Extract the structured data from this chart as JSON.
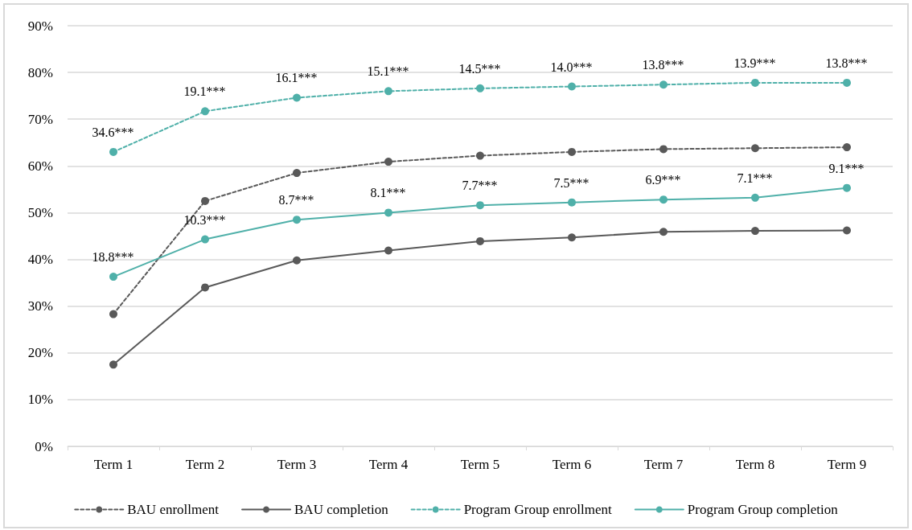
{
  "chart_data": {
    "type": "line",
    "categories": [
      "Term 1",
      "Term 2",
      "Term 3",
      "Term 4",
      "Term 5",
      "Term 6",
      "Term 7",
      "Term 8",
      "Term 9"
    ],
    "series": [
      {
        "name": "BAU enrollment",
        "color": "#595959",
        "line_style": "dashed",
        "values": [
          28.3,
          52.5,
          58.5,
          60.9,
          62.2,
          63.0,
          63.6,
          63.8,
          64.0
        ]
      },
      {
        "name": "BAU completion",
        "color": "#595959",
        "line_style": "solid",
        "values": [
          17.5,
          34.0,
          39.8,
          41.9,
          43.9,
          44.7,
          45.9,
          46.1,
          46.2
        ]
      },
      {
        "name": "Program Group enrollment",
        "color": "#4fb0a9",
        "line_style": "dashed",
        "values": [
          63.0,
          71.7,
          74.6,
          76.0,
          76.6,
          77.0,
          77.4,
          77.8,
          77.8
        ]
      },
      {
        "name": "Program Group completion",
        "color": "#4fb0a9",
        "line_style": "solid",
        "values": [
          36.3,
          44.3,
          48.5,
          50.0,
          51.6,
          52.2,
          52.8,
          53.2,
          55.3
        ]
      }
    ],
    "ylim": [
      0,
      90
    ],
    "yticks": [
      {
        "value": 0,
        "label": "0%"
      },
      {
        "value": 10,
        "label": "10%"
      },
      {
        "value": 20,
        "label": "20%"
      },
      {
        "value": 30,
        "label": "30%"
      },
      {
        "value": 40,
        "label": "40%"
      },
      {
        "value": 50,
        "label": "50%"
      },
      {
        "value": 60,
        "label": "60%"
      },
      {
        "value": 70,
        "label": "70%"
      },
      {
        "value": 80,
        "label": "80%"
      },
      {
        "value": 90,
        "label": "90%"
      }
    ],
    "grid": "y",
    "legend": "bottom",
    "marker": "circle",
    "annotations": [
      {
        "text": "34.6***",
        "x": "Term 1",
        "y": 63.0
      },
      {
        "text": "19.1***",
        "x": "Term 2",
        "y": 71.7
      },
      {
        "text": "16.1***",
        "x": "Term 3",
        "y": 74.6
      },
      {
        "text": "15.1***",
        "x": "Term 4",
        "y": 76.0
      },
      {
        "text": "14.5***",
        "x": "Term 5",
        "y": 76.6
      },
      {
        "text": "14.0***",
        "x": "Term 6",
        "y": 77.0
      },
      {
        "text": "13.8***",
        "x": "Term 7",
        "y": 77.4
      },
      {
        "text": "13.9***",
        "x": "Term 8",
        "y": 77.8
      },
      {
        "text": "13.8***",
        "x": "Term 9",
        "y": 77.8
      },
      {
        "text": "18.8***",
        "x": "Term 1",
        "y": 36.3
      },
      {
        "text": "10.3***",
        "x": "Term 2",
        "y": 44.3
      },
      {
        "text": "8.7***",
        "x": "Term 3",
        "y": 48.5
      },
      {
        "text": "8.1***",
        "x": "Term 4",
        "y": 50.0
      },
      {
        "text": "7.7***",
        "x": "Term 5",
        "y": 51.6
      },
      {
        "text": "7.5***",
        "x": "Term 6",
        "y": 52.2
      },
      {
        "text": "6.9***",
        "x": "Term 7",
        "y": 52.8
      },
      {
        "text": "7.1***",
        "x": "Term 8",
        "y": 53.2
      },
      {
        "text": "9.1***",
        "x": "Term 9",
        "y": 55.3
      }
    ]
  }
}
